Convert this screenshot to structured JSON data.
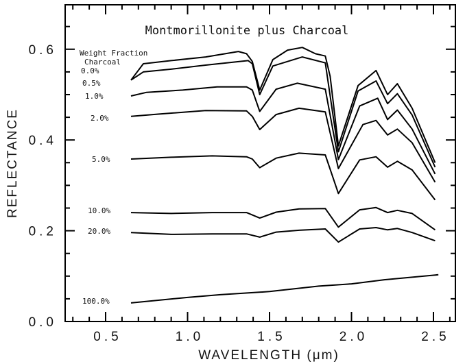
{
  "chart_data": {
    "type": "line",
    "title": "Montmorillonite plus Charcoal",
    "xlabel": "WAVELENGTH (μm)",
    "ylabel": "REFLECTANCE",
    "xlim": [
      0.25,
      2.63
    ],
    "ylim": [
      0.0,
      0.7
    ],
    "xticks": [
      0.5,
      1.0,
      1.5,
      2.0,
      2.5
    ],
    "xtick_labels": [
      "0.5",
      "1.0",
      "1.5",
      "2.0",
      "2.5"
    ],
    "yticks": [
      0.0,
      0.2,
      0.4,
      0.6
    ],
    "ytick_labels": [
      "0.0",
      "0.2",
      "0.4",
      "0.6"
    ],
    "grid": false,
    "legend_title": [
      "Weight Fraction",
      "Charcoal"
    ],
    "series": [
      {
        "name": "0.0%",
        "x": [
          0.655,
          0.73,
          0.9,
          1.11,
          1.31,
          1.36,
          1.395,
          1.44,
          1.52,
          1.61,
          1.7,
          1.78,
          1.84,
          1.87,
          1.92,
          2.04,
          2.15,
          2.22,
          2.28,
          2.37,
          2.51
        ],
        "y": [
          0.532,
          0.568,
          0.575,
          0.583,
          0.595,
          0.59,
          0.573,
          0.51,
          0.577,
          0.598,
          0.604,
          0.59,
          0.585,
          0.54,
          0.387,
          0.52,
          0.553,
          0.5,
          0.524,
          0.47,
          0.35
        ]
      },
      {
        "name": "0.5%",
        "x": [
          0.655,
          0.73,
          0.9,
          1.11,
          1.37,
          1.395,
          1.44,
          1.52,
          1.7,
          1.84,
          1.92,
          2.04,
          2.15,
          2.22,
          2.28,
          2.37,
          2.51
        ],
        "y": [
          0.532,
          0.55,
          0.556,
          0.565,
          0.575,
          0.568,
          0.5,
          0.563,
          0.583,
          0.57,
          0.374,
          0.508,
          0.53,
          0.48,
          0.502,
          0.455,
          0.34
        ]
      },
      {
        "name": "1.0%",
        "x": [
          0.655,
          0.75,
          0.97,
          1.18,
          1.36,
          1.395,
          1.44,
          1.54,
          1.67,
          1.84,
          1.92,
          2.05,
          2.16,
          2.22,
          2.28,
          2.37,
          2.51
        ],
        "y": [
          0.497,
          0.505,
          0.51,
          0.517,
          0.517,
          0.51,
          0.463,
          0.512,
          0.525,
          0.512,
          0.357,
          0.475,
          0.492,
          0.445,
          0.466,
          0.424,
          0.325
        ]
      },
      {
        "name": "2.0%",
        "x": [
          0.655,
          0.82,
          1.11,
          1.36,
          1.395,
          1.44,
          1.54,
          1.68,
          1.84,
          1.92,
          2.07,
          2.15,
          2.22,
          2.28,
          2.37,
          2.51
        ],
        "y": [
          0.452,
          0.457,
          0.465,
          0.464,
          0.452,
          0.423,
          0.456,
          0.47,
          0.462,
          0.337,
          0.434,
          0.443,
          0.411,
          0.424,
          0.394,
          0.307
        ]
      },
      {
        "name": "5.0%",
        "x": [
          0.655,
          0.9,
          1.15,
          1.36,
          1.395,
          1.44,
          1.54,
          1.68,
          1.84,
          1.92,
          2.05,
          2.15,
          2.22,
          2.28,
          2.37,
          2.51
        ],
        "y": [
          0.358,
          0.362,
          0.365,
          0.363,
          0.358,
          0.339,
          0.36,
          0.371,
          0.367,
          0.282,
          0.356,
          0.363,
          0.34,
          0.353,
          0.334,
          0.268
        ]
      },
      {
        "name": "10.0%",
        "x": [
          0.655,
          0.9,
          1.15,
          1.36,
          1.44,
          1.54,
          1.68,
          1.84,
          1.92,
          2.05,
          2.15,
          2.22,
          2.28,
          2.37,
          2.51
        ],
        "y": [
          0.24,
          0.238,
          0.24,
          0.24,
          0.228,
          0.241,
          0.248,
          0.249,
          0.208,
          0.246,
          0.251,
          0.24,
          0.245,
          0.238,
          0.202
        ]
      },
      {
        "name": "20.0%",
        "x": [
          0.655,
          0.9,
          1.15,
          1.36,
          1.44,
          1.54,
          1.68,
          1.84,
          1.92,
          2.05,
          2.15,
          2.22,
          2.28,
          2.37,
          2.51
        ],
        "y": [
          0.196,
          0.192,
          0.193,
          0.193,
          0.186,
          0.197,
          0.201,
          0.204,
          0.175,
          0.204,
          0.207,
          0.202,
          0.205,
          0.196,
          0.178
        ]
      },
      {
        "name": "100.0%",
        "x": [
          0.655,
          0.8,
          1.0,
          1.2,
          1.5,
          1.8,
          2.0,
          2.2,
          2.53
        ],
        "y": [
          0.041,
          0.046,
          0.053,
          0.059,
          0.066,
          0.078,
          0.083,
          0.092,
          0.103
        ]
      }
    ]
  }
}
